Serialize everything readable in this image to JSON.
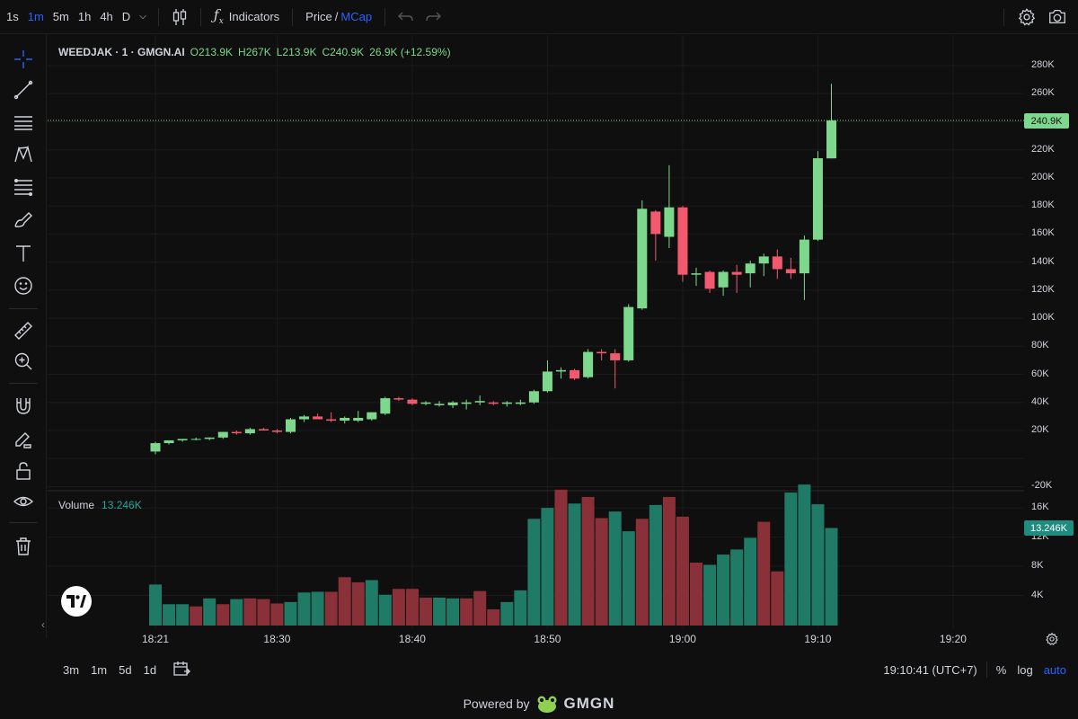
{
  "toolbar": {
    "timeframes": [
      "1s",
      "1m",
      "5m",
      "1h",
      "4h",
      "D"
    ],
    "active_timeframe": "1m",
    "indicators_label": "Indicators",
    "price_label": "Price",
    "slash": "/",
    "mcap_label": "MCap"
  },
  "legend": {
    "symbol": "WEEDJAK · 1 · GMGN.AI",
    "open": "O213.9K",
    "high": "H267K",
    "low": "L213.9K",
    "close": "C240.9K",
    "change": "26.9K (+12.59%)"
  },
  "volume_legend": {
    "label": "Volume",
    "value": "13.246K"
  },
  "price_axis": [
    "280K",
    "260K",
    "240.9K",
    "220K",
    "200K",
    "180K",
    "160K",
    "140K",
    "120K",
    "100K",
    "80K",
    "60K",
    "40K",
    "20K",
    "-20K"
  ],
  "volume_axis": [
    "16K",
    "12K",
    "8K",
    "4K"
  ],
  "current_price_tag": "240.9K",
  "current_volume_tag": "13.246K",
  "time_axis": [
    "18:21",
    "18:30",
    "18:40",
    "18:50",
    "19:00",
    "19:10",
    "19:20"
  ],
  "bottom": {
    "ranges": [
      "3m",
      "1m",
      "5d",
      "1d"
    ],
    "clock": "19:10:41 (UTC+7)",
    "percent": "%",
    "log": "log",
    "auto": "auto"
  },
  "footer": {
    "powered": "Powered by",
    "brand": "GMGN"
  },
  "colors": {
    "up": "#7dd88d",
    "down": "#f2596f",
    "vol_up": "#1f7a66",
    "vol_down": "#8a3038",
    "accent": "#2962ff"
  },
  "chart_data": {
    "type": "candlestick",
    "x_unit": "minute",
    "candles": [
      {
        "t": "18:21",
        "o": 5,
        "h": 12,
        "l": 3,
        "c": 11
      },
      {
        "t": "18:22",
        "o": 11,
        "h": 13,
        "l": 10,
        "c": 13
      },
      {
        "t": "18:23",
        "o": 13,
        "h": 14,
        "l": 12,
        "c": 14
      },
      {
        "t": "18:24",
        "o": 14,
        "h": 15,
        "l": 13,
        "c": 14
      },
      {
        "t": "18:25",
        "o": 14,
        "h": 15,
        "l": 13,
        "c": 15
      },
      {
        "t": "18:26",
        "o": 15,
        "h": 19,
        "l": 14,
        "c": 19
      },
      {
        "t": "18:27",
        "o": 19,
        "h": 20,
        "l": 17,
        "c": 18
      },
      {
        "t": "18:28",
        "o": 18,
        "h": 22,
        "l": 17,
        "c": 21
      },
      {
        "t": "18:29",
        "o": 21,
        "h": 22,
        "l": 20,
        "c": 20
      },
      {
        "t": "18:30",
        "o": 20,
        "h": 21,
        "l": 18,
        "c": 19
      },
      {
        "t": "18:31",
        "o": 19,
        "h": 29,
        "l": 18,
        "c": 28
      },
      {
        "t": "18:32",
        "o": 28,
        "h": 31,
        "l": 26,
        "c": 30
      },
      {
        "t": "18:33",
        "o": 30,
        "h": 32,
        "l": 28,
        "c": 28
      },
      {
        "t": "18:34",
        "o": 28,
        "h": 33,
        "l": 26,
        "c": 27
      },
      {
        "t": "18:35",
        "o": 27,
        "h": 30,
        "l": 25,
        "c": 29
      },
      {
        "t": "18:36",
        "o": 27,
        "h": 34,
        "l": 26,
        "c": 29
      },
      {
        "t": "18:37",
        "o": 28,
        "h": 33,
        "l": 27,
        "c": 33
      },
      {
        "t": "18:38",
        "o": 32,
        "h": 44,
        "l": 31,
        "c": 43
      },
      {
        "t": "18:39",
        "o": 43,
        "h": 44,
        "l": 41,
        "c": 42
      },
      {
        "t": "18:40",
        "o": 42,
        "h": 43,
        "l": 38,
        "c": 39
      },
      {
        "t": "18:41",
        "o": 39,
        "h": 41,
        "l": 38,
        "c": 40
      },
      {
        "t": "18:42",
        "o": 38,
        "h": 41,
        "l": 37,
        "c": 39
      },
      {
        "t": "18:43",
        "o": 38,
        "h": 41,
        "l": 36,
        "c": 40
      },
      {
        "t": "18:44",
        "o": 39,
        "h": 42,
        "l": 35,
        "c": 40
      },
      {
        "t": "18:45",
        "o": 40,
        "h": 45,
        "l": 38,
        "c": 41
      },
      {
        "t": "18:46",
        "o": 40,
        "h": 41,
        "l": 38,
        "c": 39
      },
      {
        "t": "18:47",
        "o": 39,
        "h": 41,
        "l": 37,
        "c": 40
      },
      {
        "t": "18:48",
        "o": 39,
        "h": 42,
        "l": 38,
        "c": 40
      },
      {
        "t": "18:49",
        "o": 40,
        "h": 49,
        "l": 39,
        "c": 48
      },
      {
        "t": "18:50",
        "o": 48,
        "h": 70,
        "l": 47,
        "c": 62
      },
      {
        "t": "18:51",
        "o": 62,
        "h": 65,
        "l": 57,
        "c": 63
      },
      {
        "t": "18:52",
        "o": 63,
        "h": 64,
        "l": 56,
        "c": 57
      },
      {
        "t": "18:53",
        "o": 58,
        "h": 78,
        "l": 57,
        "c": 76
      },
      {
        "t": "18:54",
        "o": 76,
        "h": 78,
        "l": 70,
        "c": 75
      },
      {
        "t": "18:55",
        "o": 75,
        "h": 78,
        "l": 50,
        "c": 70
      },
      {
        "t": "18:56",
        "o": 70,
        "h": 110,
        "l": 69,
        "c": 108
      },
      {
        "t": "18:57",
        "o": 107,
        "h": 184,
        "l": 106,
        "c": 178
      },
      {
        "t": "18:58",
        "o": 176,
        "h": 177,
        "l": 141,
        "c": 160
      },
      {
        "t": "18:59",
        "o": 158,
        "h": 209,
        "l": 150,
        "c": 179
      },
      {
        "t": "19:00",
        "o": 179,
        "h": 180,
        "l": 126,
        "c": 131
      },
      {
        "t": "19:01",
        "o": 131,
        "h": 136,
        "l": 123,
        "c": 132
      },
      {
        "t": "19:02",
        "o": 133,
        "h": 134,
        "l": 118,
        "c": 121
      },
      {
        "t": "19:03",
        "o": 122,
        "h": 134,
        "l": 116,
        "c": 133
      },
      {
        "t": "19:04",
        "o": 133,
        "h": 138,
        "l": 118,
        "c": 131
      },
      {
        "t": "19:05",
        "o": 132,
        "h": 141,
        "l": 122,
        "c": 139
      },
      {
        "t": "19:06",
        "o": 139,
        "h": 146,
        "l": 130,
        "c": 144
      },
      {
        "t": "19:07",
        "o": 144,
        "h": 149,
        "l": 128,
        "c": 135
      },
      {
        "t": "19:08",
        "o": 135,
        "h": 143,
        "l": 128,
        "c": 132
      },
      {
        "t": "19:09",
        "o": 132,
        "h": 159,
        "l": 113,
        "c": 156
      },
      {
        "t": "19:10",
        "o": 156,
        "h": 219,
        "l": 155,
        "c": 214
      },
      {
        "t": "19:11",
        "o": 213.9,
        "h": 267,
        "l": 213.9,
        "c": 240.9
      }
    ],
    "volume": [
      5.5,
      2.8,
      2.8,
      2.5,
      3.6,
      2.8,
      3.5,
      3.6,
      3.5,
      2.9,
      3.1,
      4.4,
      4.5,
      4.5,
      6.5,
      5.8,
      6.1,
      4.1,
      4.9,
      4.9,
      3.7,
      3.7,
      3.6,
      3.6,
      4.6,
      2.1,
      3.1,
      4.7,
      14.5,
      16,
      18.5,
      16.6,
      17.5,
      14.6,
      15.5,
      12.8,
      14.5,
      16.4,
      17.5,
      14.8,
      8.5,
      8.2,
      9.6,
      10.3,
      11.9,
      14.1,
      7.3,
      18.1,
      19.2,
      16.5,
      13.246
    ],
    "volume_up": [
      true,
      true,
      true,
      false,
      true,
      false,
      true,
      false,
      false,
      false,
      true,
      true,
      true,
      false,
      false,
      false,
      true,
      true,
      false,
      false,
      false,
      true,
      true,
      false,
      false,
      false,
      true,
      true,
      true,
      true,
      false,
      true,
      false,
      false,
      true,
      true,
      false,
      true,
      false,
      false,
      false,
      true,
      true,
      true,
      true,
      false,
      false,
      true,
      true,
      true,
      true
    ],
    "ylim": [
      -20,
      290
    ],
    "vol_ylim": [
      0,
      17
    ]
  }
}
